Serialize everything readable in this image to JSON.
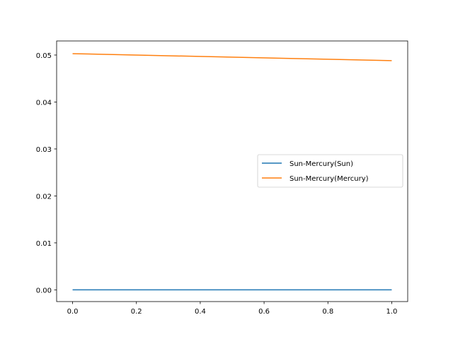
{
  "chart_data": {
    "type": "line",
    "title": "",
    "xlabel": "",
    "ylabel": "",
    "xlim": [
      -0.05,
      1.05
    ],
    "ylim": [
      -0.0025,
      0.053
    ],
    "xticks": [
      0.0,
      0.2,
      0.4,
      0.6,
      0.8,
      1.0
    ],
    "xtick_labels": [
      "0.0",
      "0.2",
      "0.4",
      "0.6",
      "0.8",
      "1.0"
    ],
    "yticks": [
      0.0,
      0.01,
      0.02,
      0.03,
      0.04,
      0.05
    ],
    "ytick_labels": [
      "0.00",
      "0.01",
      "0.02",
      "0.03",
      "0.04",
      "0.05"
    ],
    "grid": false,
    "legend_placement": "center-right",
    "series": [
      {
        "name": "Sun-Mercury(Sun)",
        "color": "#1f77b4",
        "x": [
          0.0,
          1.0
        ],
        "values": [
          0.0,
          0.0
        ]
      },
      {
        "name": "Sun-Mercury(Mercury)",
        "color": "#ff7f0e",
        "x": [
          0.0,
          1.0
        ],
        "values": [
          0.0503,
          0.0488
        ]
      }
    ]
  }
}
